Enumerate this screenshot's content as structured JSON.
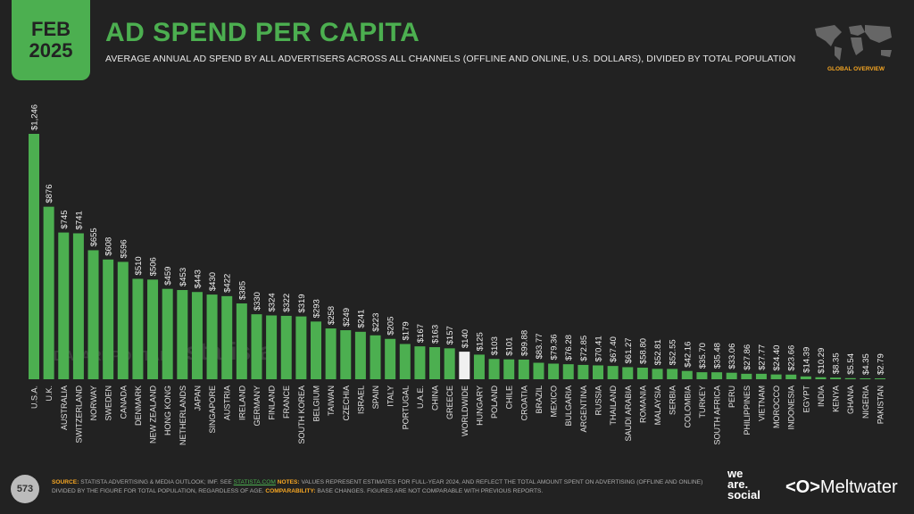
{
  "header": {
    "date_line1": "FEB",
    "date_line2": "2025",
    "title": "AD SPEND PER CAPITA",
    "subtitle": "AVERAGE ANNUAL AD SPEND BY ALL ADVERTISERS ACROSS ALL CHANNELS (OFFLINE AND ONLINE, U.S. DOLLARS), DIVIDED BY TOTAL POPULATION",
    "section": "GLOBAL OVERVIEW"
  },
  "watermarks": {
    "left": "DATAREPORTAL",
    "right": "statista"
  },
  "colors": {
    "bar": "#4caf50",
    "highlight": "#f0f0f0",
    "background": "#222222",
    "accent": "#f5a623"
  },
  "chart_data": {
    "type": "bar",
    "ylim": [
      0,
      1246
    ],
    "grid": false,
    "categories": [
      "U.S.A.",
      "U.K.",
      "AUSTRALIA",
      "SWITZERLAND",
      "NORWAY",
      "SWEDEN",
      "CANADA",
      "DENMARK",
      "NEW ZEALAND",
      "HONG KONG",
      "NETHERLANDS",
      "JAPAN",
      "SINGAPORE",
      "AUSTRIA",
      "IRELAND",
      "GERMANY",
      "FINLAND",
      "FRANCE",
      "SOUTH KOREA",
      "BELGIUM",
      "TAIWAN",
      "CZECHIA",
      "ISRAEL",
      "SPAIN",
      "ITALY",
      "PORTUGAL",
      "U.A.E.",
      "CHINA",
      "GREECE",
      "WORLDWIDE",
      "HUNGARY",
      "POLAND",
      "CHILE",
      "CROATIA",
      "BRAZIL",
      "MEXICO",
      "BULGARIA",
      "ARGENTINA",
      "RUSSIA",
      "THAILAND",
      "SAUDI ARABIA",
      "ROMANIA",
      "MALAYSIA",
      "SERBIA",
      "COLOMBIA",
      "TURKEY",
      "SOUTH AFRICA",
      "PERU",
      "PHILIPPINES",
      "VIETNAM",
      "MOROCCO",
      "INDONESIA",
      "EGYPT",
      "INDIA",
      "KENYA",
      "GHANA",
      "NIGERIA",
      "PAKISTAN"
    ],
    "values": [
      1246,
      876,
      745,
      741,
      655,
      608,
      596,
      510,
      506,
      459,
      453,
      443,
      430,
      422,
      385,
      330,
      324,
      322,
      319,
      293,
      258,
      249,
      241,
      223,
      205,
      179,
      167,
      163,
      157,
      140,
      125,
      103,
      101,
      99.88,
      83.77,
      79.36,
      76.28,
      72.85,
      70.41,
      67.4,
      61.27,
      58.8,
      52.81,
      52.55,
      42.16,
      35.7,
      35.48,
      33.06,
      27.86,
      27.77,
      24.4,
      23.66,
      14.39,
      10.29,
      8.35,
      5.54,
      4.35,
      2.79
    ],
    "labels": [
      "$1,246",
      "$876",
      "$745",
      "$741",
      "$655",
      "$608",
      "$596",
      "$510",
      "$506",
      "$459",
      "$453",
      "$443",
      "$430",
      "$422",
      "$385",
      "$330",
      "$324",
      "$322",
      "$319",
      "$293",
      "$258",
      "$249",
      "$241",
      "$223",
      "$205",
      "$179",
      "$167",
      "$163",
      "$157",
      "$140",
      "$125",
      "$103",
      "$101",
      "$99.88",
      "$83.77",
      "$79.36",
      "$76.28",
      "$72.85",
      "$70.41",
      "$67.40",
      "$61.27",
      "$58.80",
      "$52.81",
      "$52.55",
      "$42.16",
      "$35.70",
      "$35.48",
      "$33.06",
      "$27.86",
      "$27.77",
      "$24.40",
      "$23.66",
      "$14.39",
      "$10.29",
      "$8.35",
      "$5.54",
      "$4.35",
      "$2.79"
    ],
    "highlight": "WORLDWIDE"
  },
  "footer": {
    "page": "573",
    "source_label": "SOURCE:",
    "source_text": " STATISTA ADVERTISING & MEDIA OUTLOOK; IMF. SEE ",
    "source_link": "STATISTA.COM",
    "notes_label": " NOTES:",
    "notes_text": " VALUES REPRESENT ESTIMATES FOR FULL-YEAR 2024, AND REFLECT THE TOTAL AMOUNT SPENT ON ADVERTISING (OFFLINE AND ONLINE) DIVIDED BY THE FIGURE FOR TOTAL POPULATION, REGARDLESS OF AGE.",
    "comp_label": " COMPARABILITY:",
    "comp_text": " BASE CHANGES. FIGURES ARE NOT COMPARABLE WITH PREVIOUS REPORTS.",
    "brand1_l1": "we",
    "brand1_l2": "are.",
    "brand1_l3": "social",
    "brand2": "Meltwater"
  }
}
